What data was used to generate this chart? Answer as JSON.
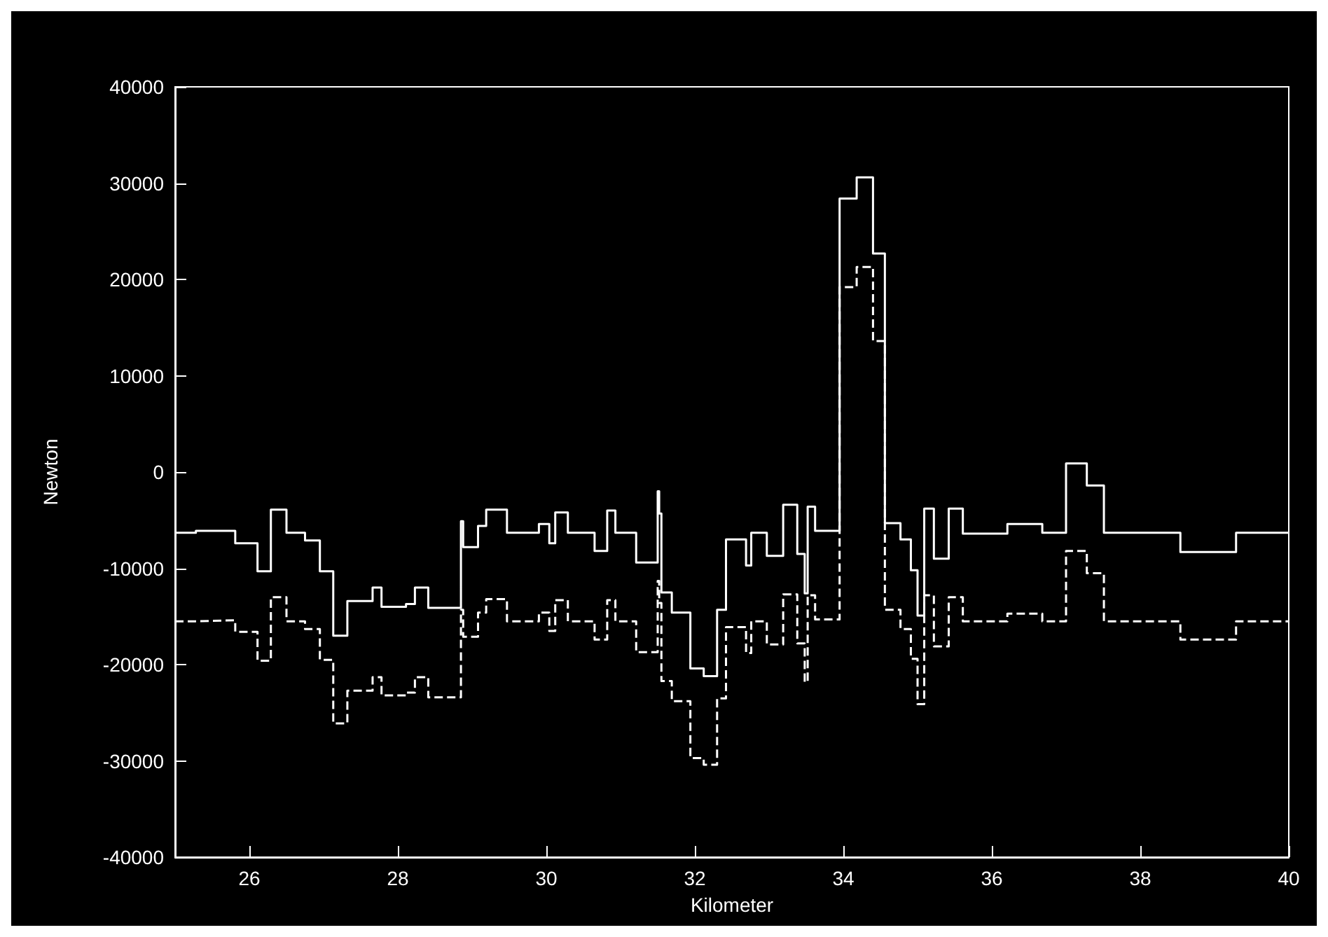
{
  "chart_data": {
    "type": "step",
    "xlabel": "Kilometer",
    "ylabel": "Newton",
    "xlim": [
      25,
      40
    ],
    "xticks": [
      26,
      28,
      30,
      32,
      34,
      36,
      38,
      40
    ],
    "ylim": [
      -40000,
      40000
    ],
    "yticks": [
      -40000,
      -30000,
      -20000,
      -10000,
      0,
      10000,
      20000,
      30000,
      40000
    ],
    "marker": "none",
    "series": [
      {
        "color": "#ffffff",
        "line_style": "solid",
        "x": [
          25,
          25.28,
          25.81,
          26.11,
          26.29,
          26.5,
          26.75,
          26.95,
          27.13,
          27.32,
          27.66,
          27.78,
          28.11,
          28.23,
          28.41,
          28.85,
          28.88,
          29.08,
          29.19,
          29.47,
          29.9,
          30.04,
          30.12,
          30.29,
          30.65,
          30.82,
          30.93,
          31.21,
          31.5,
          31.52,
          31.55,
          31.69,
          31.94,
          32.12,
          32.3,
          32.42,
          32.69,
          32.76,
          32.97,
          33.19,
          33.38,
          33.48,
          33.52,
          33.62,
          33.95,
          34.18,
          34.4,
          34.56,
          34.77,
          34.91,
          35.0,
          35.09,
          35.22,
          35.42,
          35.61,
          36.21,
          36.68,
          37.0,
          37.28,
          37.51,
          38.54,
          39.29,
          40
        ],
        "values": [
          -6300,
          -6100,
          -7400,
          -10300,
          -3900,
          -6300,
          -7100,
          -10300,
          -17000,
          -13400,
          -12000,
          -14000,
          -13700,
          -12000,
          -14100,
          -5100,
          -7800,
          -5600,
          -3900,
          -6300,
          -5400,
          -7400,
          -4200,
          -6300,
          -8200,
          -4000,
          -6300,
          -9400,
          -2000,
          -4300,
          -12500,
          -14600,
          -20400,
          -21200,
          -14300,
          -7000,
          -9700,
          -6300,
          -8700,
          -3400,
          -8500,
          -12600,
          -3600,
          -6100,
          28400,
          30600,
          22700,
          -5300,
          -7000,
          -10200,
          -14900,
          -3800,
          -9000,
          -3800,
          -6400,
          -5400,
          -6300,
          900,
          -1400,
          -6300,
          -8300,
          -6300,
          -6300
        ]
      },
      {
        "color": "#ffffff",
        "line_style": "dashed",
        "x": [
          25,
          25.28,
          25.81,
          26.11,
          26.29,
          26.5,
          26.75,
          26.95,
          27.13,
          27.32,
          27.66,
          27.78,
          28.11,
          28.23,
          28.41,
          28.85,
          28.88,
          29.08,
          29.19,
          29.47,
          29.9,
          30.04,
          30.12,
          30.29,
          30.65,
          30.82,
          30.93,
          31.21,
          31.5,
          31.52,
          31.55,
          31.69,
          31.94,
          32.12,
          32.3,
          32.42,
          32.69,
          32.76,
          32.97,
          33.19,
          33.38,
          33.48,
          33.52,
          33.62,
          33.95,
          34.18,
          34.4,
          34.56,
          34.77,
          34.91,
          35.0,
          35.09,
          35.22,
          35.42,
          35.61,
          36.21,
          36.68,
          37.0,
          37.28,
          37.51,
          38.54,
          39.29,
          40
        ],
        "values": [
          -15500,
          -15400,
          -16600,
          -19600,
          -13000,
          -15500,
          -16300,
          -19500,
          -26100,
          -22700,
          -21300,
          -23200,
          -22900,
          -21300,
          -23400,
          -14300,
          -17100,
          -14600,
          -13200,
          -15500,
          -14600,
          -16500,
          -13300,
          -15500,
          -17400,
          -13300,
          -15500,
          -18700,
          -11300,
          -13600,
          -21700,
          -23800,
          -29700,
          -30400,
          -23500,
          -16100,
          -18800,
          -15500,
          -17900,
          -12700,
          -17800,
          -21800,
          -12800,
          -15300,
          19200,
          21300,
          13600,
          -14300,
          -16300,
          -19400,
          -24100,
          -12800,
          -18100,
          -13000,
          -15500,
          -14700,
          -15500,
          -8200,
          -10500,
          -15500,
          -17400,
          -15500,
          -15500
        ]
      }
    ]
  }
}
